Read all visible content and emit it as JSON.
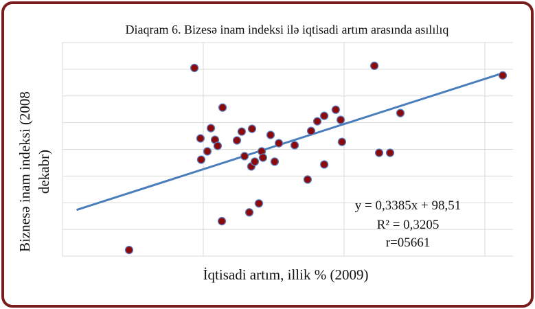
{
  "chart_data": {
    "type": "scatter",
    "title": "Diaqram 6. Bizesə inam indeksi ilə iqtisadi artım arasında asılılıq",
    "x_label": "İqtisadi artım, illik % (2009)",
    "y_label": "Biznesə inam indeksi (2008 dekabr)",
    "annotations": [
      "y = 0,3385x + 98,51",
      "R² = 0,3205",
      "r=05661"
    ],
    "trendline": {
      "slope": 0.3385,
      "intercept": 98.51,
      "color": "#4a7ebb"
    },
    "xlim": [
      -10,
      22
    ],
    "ylim": [
      92,
      108
    ],
    "xticks": [
      -10,
      0,
      10,
      20
    ],
    "yticks": [
      92,
      94,
      96,
      98,
      100,
      102,
      104,
      106,
      108
    ],
    "grid": true,
    "series": [
      {
        "color": "#8b0a0a",
        "x": [
          -5.27,
          -0.63,
          -0.2,
          -0.15,
          0.29,
          0.54,
          0.83,
          1.02,
          1.37,
          1.32,
          2.39,
          2.73,
          2.93,
          3.46,
          3.41,
          3.66,
          3.27,
          3.95,
          4.15,
          4.24,
          4.78,
          5.07,
          5.37,
          6.49,
          7.41,
          7.66,
          8.1,
          8.59,
          8.59,
          9.41,
          9.76,
          9.85,
          12.15,
          12.49,
          13.27,
          14.0,
          21.27
        ],
        "values": [
          92.46,
          106.1,
          100.82,
          99.23,
          99.85,
          101.59,
          100.72,
          100.26,
          103.13,
          94.62,
          100.67,
          101.33,
          99.49,
          101.54,
          98.72,
          99.08,
          95.28,
          95.95,
          99.85,
          99.38,
          101.08,
          99.08,
          100.46,
          100.31,
          97.74,
          101.38,
          102.1,
          102.51,
          98.87,
          102.97,
          102.21,
          100.56,
          106.26,
          99.74,
          99.74,
          102.72,
          105.54
        ]
      }
    ]
  }
}
